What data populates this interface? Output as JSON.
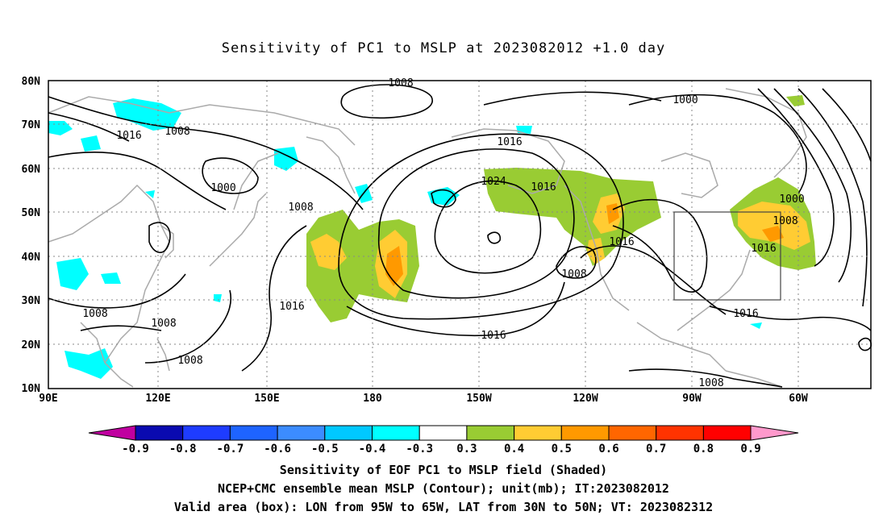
{
  "title": "Sensitivity of PC1 to MSLP at 2023082012 +1.0 day",
  "lat_labels": [
    "80N",
    "70N",
    "60N",
    "50N",
    "40N",
    "30N",
    "20N",
    "10N"
  ],
  "lon_labels": [
    "90E",
    "120E",
    "150E",
    "180",
    "150W",
    "120W",
    "90W",
    "60W"
  ],
  "contour_labels": [
    "1008",
    "1000",
    "1016",
    "1008",
    "1016",
    "1000",
    "1008",
    "1008",
    "1016",
    "1016",
    "1024",
    "1016",
    "1016",
    "1000",
    "1008",
    "1016",
    "1008",
    "1016",
    "1008",
    "1016",
    "1008",
    "1008"
  ],
  "colorbar": {
    "labels": [
      "-0.9",
      "-0.8",
      "-0.7",
      "-0.6",
      "-0.5",
      "-0.4",
      "-0.3",
      "0.3",
      "0.4",
      "0.5",
      "0.6",
      "0.7",
      "0.8",
      "0.9"
    ],
    "colors": [
      "#c000a0",
      "#0a0ab0",
      "#1e3cff",
      "#1e64ff",
      "#3c8cff",
      "#00c8ff",
      "#00ffff",
      "#ffffff",
      "#99cc33",
      "#ffcc33",
      "#ff9900",
      "#ff6600",
      "#ff3300",
      "#ff0000",
      "#ff99cc"
    ]
  },
  "shading_colors": {
    "cyan": "#00ffff",
    "green": "#99cc33",
    "yellow": "#ffcc33",
    "orange": "#ff9900"
  },
  "captions": [
    "Sensitivity of EOF PC1 to MSLP field (Shaded)",
    "NCEP+CMC ensemble mean MSLP (Contour); unit(mb); IT:2023082012",
    "Valid area (box): LON from 95W to 65W, LAT from 30N to 50N; VT: 2023082312"
  ]
}
